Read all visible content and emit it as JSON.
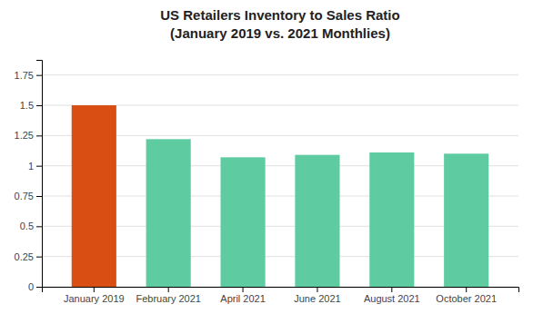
{
  "chart_data": {
    "type": "bar",
    "title": "US Retailers Inventory to Sales Ratio",
    "subtitle": "(January 2019 vs. 2021 Monthlies)",
    "categories": [
      "January 2019",
      "February 2021",
      "April 2021",
      "June 2021",
      "August 2021",
      "October 2021"
    ],
    "values": [
      1.5,
      1.22,
      1.07,
      1.09,
      1.11,
      1.1
    ],
    "colors": [
      "#d94e12",
      "#5ecba1",
      "#5ecba1",
      "#5ecba1",
      "#5ecba1",
      "#5ecba1"
    ],
    "ylim": [
      0,
      1.875
    ],
    "yticks": [
      0,
      0.25,
      0.5,
      0.75,
      1,
      1.25,
      1.5,
      1.75
    ],
    "grid": true
  }
}
